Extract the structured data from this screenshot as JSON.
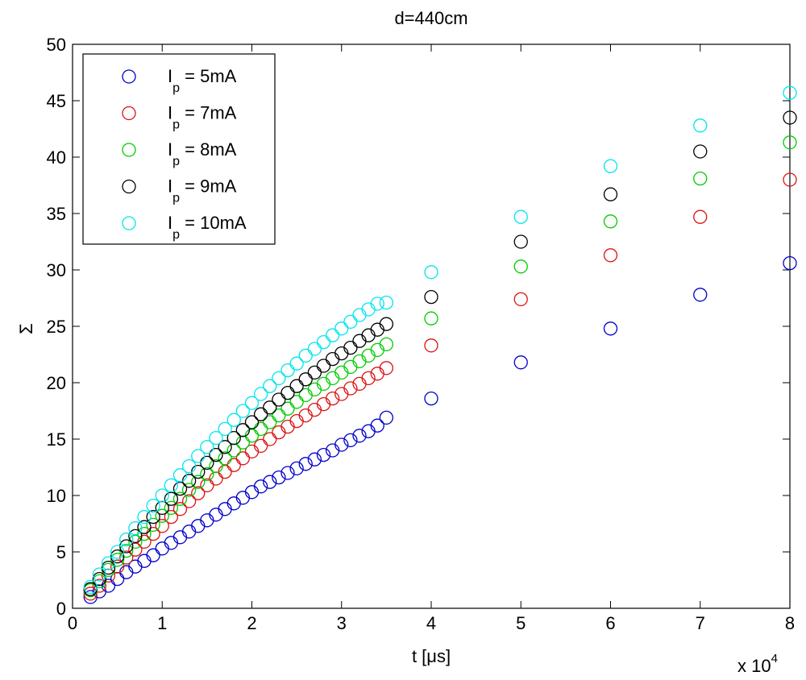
{
  "chart_data": {
    "type": "scatter",
    "title": "d=440cm",
    "xlabel": "t [μs]",
    "ylabel": "Σ",
    "x_exponent": "x 10",
    "x_exponent_power": "4",
    "xlim": [
      0,
      8
    ],
    "ylim": [
      0,
      50
    ],
    "xticks": [
      0,
      1,
      2,
      3,
      4,
      5,
      6,
      7,
      8
    ],
    "yticks": [
      0,
      5,
      10,
      15,
      20,
      25,
      30,
      35,
      40,
      45,
      50
    ],
    "x_tick_labels": [
      "0",
      "1",
      "2",
      "3",
      "4",
      "5",
      "6",
      "7",
      "8"
    ],
    "y_tick_labels": [
      "0",
      "5",
      "10",
      "15",
      "20",
      "25",
      "30",
      "35",
      "40",
      "45",
      "50"
    ],
    "grid": false,
    "legend_position": "top-left",
    "marker": "open-circle",
    "x": [
      0.2,
      0.3,
      0.4,
      0.5,
      0.6,
      0.7,
      0.8,
      0.9,
      1.0,
      1.1,
      1.2,
      1.3,
      1.4,
      1.5,
      1.6,
      1.7,
      1.8,
      1.9,
      2.0,
      2.1,
      2.2,
      2.3,
      2.4,
      2.5,
      2.6,
      2.7,
      2.8,
      2.9,
      3.0,
      3.1,
      3.2,
      3.3,
      3.4,
      3.5,
      4,
      5,
      6,
      7,
      8
    ],
    "series": [
      {
        "name": "Ip = 5mA",
        "legend_main": "I",
        "legend_sub": "p",
        "legend_rest": " = 5mA",
        "color": "#0000cc",
        "values": [
          1.0,
          1.5,
          2.0,
          2.6,
          3.2,
          3.7,
          4.2,
          4.7,
          5.3,
          5.8,
          6.3,
          6.8,
          7.3,
          7.8,
          8.3,
          8.8,
          9.3,
          9.8,
          10.3,
          10.8,
          11.2,
          11.6,
          12.0,
          12.4,
          12.8,
          13.2,
          13.6,
          14.0,
          14.5,
          14.9,
          15.3,
          15.7,
          16.2,
          16.9,
          18.6,
          21.8,
          24.8,
          27.8,
          30.6
        ]
      },
      {
        "name": "Ip = 7mA",
        "legend_main": "I",
        "legend_sub": "p",
        "legend_rest": " = 7mA",
        "color": "#dd1111",
        "values": [
          1.3,
          2.0,
          2.9,
          3.7,
          4.5,
          5.2,
          5.9,
          6.6,
          7.3,
          8.1,
          8.8,
          9.5,
          10.2,
          10.9,
          11.5,
          12.1,
          12.7,
          13.3,
          13.9,
          14.4,
          15.0,
          15.6,
          16.1,
          16.6,
          17.1,
          17.6,
          18.1,
          18.6,
          19.0,
          19.5,
          19.9,
          20.4,
          20.8,
          21.3,
          23.3,
          27.4,
          31.3,
          34.7,
          38.0
        ]
      },
      {
        "name": "Ip = 8mA",
        "legend_main": "I",
        "legend_sub": "p",
        "legend_rest": " = 8mA",
        "color": "#00cc00",
        "values": [
          1.6,
          2.4,
          3.4,
          4.3,
          5.1,
          5.9,
          6.6,
          7.4,
          8.2,
          8.9,
          9.7,
          10.5,
          11.2,
          11.9,
          12.6,
          13.3,
          14.0,
          14.7,
          15.3,
          15.9,
          16.5,
          17.1,
          17.7,
          18.3,
          18.9,
          19.4,
          19.9,
          20.4,
          20.9,
          21.4,
          21.9,
          22.4,
          22.9,
          23.4,
          25.7,
          30.3,
          34.3,
          38.1,
          41.3
        ]
      },
      {
        "name": "Ip = 9mA",
        "legend_main": "I",
        "legend_sub": "p",
        "legend_rest": " = 9mA",
        "color": "#000000",
        "values": [
          1.7,
          2.6,
          3.6,
          4.6,
          5.5,
          6.4,
          7.2,
          8.1,
          8.9,
          9.7,
          10.6,
          11.3,
          12.1,
          12.9,
          13.6,
          14.3,
          15.1,
          15.8,
          16.5,
          17.2,
          17.8,
          18.5,
          19.1,
          19.7,
          20.3,
          20.9,
          21.5,
          22.1,
          22.6,
          23.1,
          23.7,
          24.2,
          24.7,
          25.2,
          27.6,
          32.5,
          36.7,
          40.5,
          43.5
        ]
      },
      {
        "name": "Ip = 10mA",
        "legend_main": "I",
        "legend_sub": "p",
        "legend_rest": " = 10mA",
        "color": "#00e5ee",
        "values": [
          1.9,
          3.0,
          4.0,
          5.0,
          6.1,
          7.1,
          8.1,
          9.1,
          10.0,
          10.9,
          11.8,
          12.6,
          13.5,
          14.3,
          15.1,
          15.9,
          16.7,
          17.5,
          18.2,
          19.0,
          19.7,
          20.4,
          21.1,
          21.7,
          22.4,
          23.0,
          23.6,
          24.2,
          24.8,
          25.4,
          26.0,
          26.5,
          27.0,
          27.1,
          29.8,
          34.7,
          39.2,
          42.8,
          45.7
        ]
      }
    ]
  }
}
